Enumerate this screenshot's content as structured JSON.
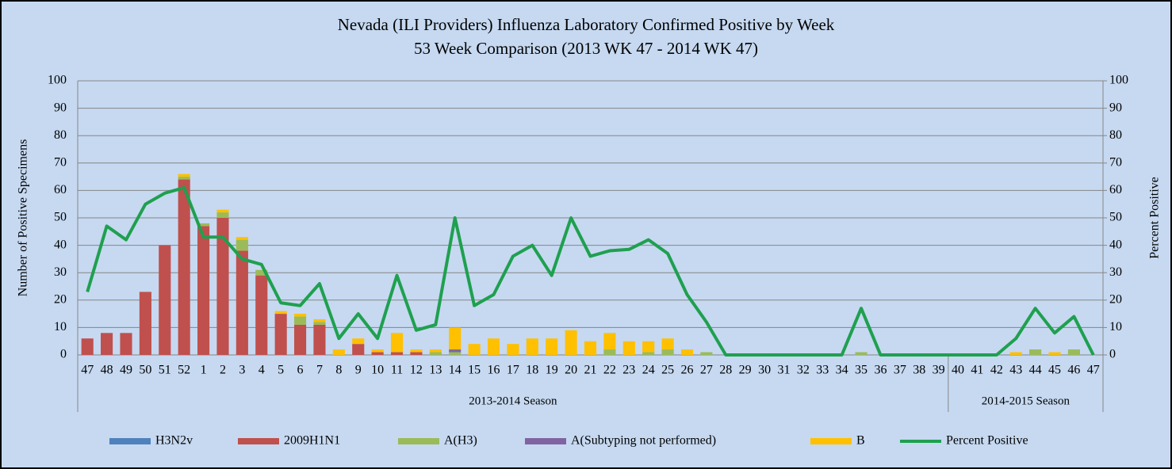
{
  "chart_data": {
    "type": "bar",
    "stacked": true,
    "title": "Nevada (ILI Providers) Influenza Laboratory Confirmed Positive by Week",
    "subtitle": "53 Week Comparison (2013 WK 47 - 2014 WK 47)",
    "y_label": "Number of Positive Specimens",
    "y2_label": "Percent Positive",
    "categories": [
      "47",
      "48",
      "49",
      "50",
      "51",
      "52",
      "1",
      "2",
      "3",
      "4",
      "5",
      "6",
      "7",
      "8",
      "9",
      "10",
      "11",
      "12",
      "13",
      "14",
      "15",
      "16",
      "17",
      "18",
      "19",
      "20",
      "21",
      "22",
      "23",
      "24",
      "25",
      "26",
      "27",
      "28",
      "29",
      "30",
      "31",
      "32",
      "33",
      "34",
      "35",
      "36",
      "37",
      "38",
      "39",
      "40",
      "41",
      "42",
      "43",
      "44",
      "45",
      "46",
      "47"
    ],
    "groups": [
      {
        "label": "2013-2014 Season",
        "size": 45
      },
      {
        "label": "2014-2015 Season",
        "size": 8
      }
    ],
    "series": [
      {
        "name": "H3N2v",
        "color": "#4f81bd",
        "values": [
          0,
          0,
          0,
          0,
          0,
          0,
          0,
          0,
          0,
          0,
          0,
          0,
          0,
          0,
          0,
          0,
          0,
          0,
          0,
          0,
          0,
          0,
          0,
          0,
          0,
          0,
          0,
          0,
          0,
          0,
          0,
          0,
          0,
          0,
          0,
          0,
          0,
          0,
          0,
          0,
          0,
          0,
          0,
          0,
          0,
          0,
          0,
          0,
          0,
          0,
          0,
          0,
          0
        ]
      },
      {
        "name": "2009H1N1",
        "color": "#c0504d",
        "values": [
          6,
          8,
          8,
          23,
          40,
          64,
          47,
          50,
          38,
          29,
          15,
          11,
          11,
          0,
          4,
          1,
          1,
          1,
          0,
          0,
          0,
          0,
          0,
          0,
          0,
          0,
          0,
          0,
          0,
          0,
          0,
          0,
          0,
          0,
          0,
          0,
          0,
          0,
          0,
          0,
          0,
          0,
          0,
          0,
          0,
          0,
          0,
          0,
          0,
          0,
          0,
          0,
          0
        ]
      },
      {
        "name": "A(H3)",
        "color": "#9bbb59",
        "values": [
          0,
          0,
          0,
          0,
          0,
          1,
          1,
          2,
          4,
          2,
          0,
          3,
          1,
          0,
          0,
          0,
          0,
          0,
          1,
          1,
          0,
          0,
          0,
          0,
          0,
          0,
          0,
          2,
          0,
          1,
          2,
          0,
          1,
          0,
          0,
          0,
          0,
          0,
          0,
          0,
          1,
          0,
          0,
          0,
          0,
          0,
          0,
          0,
          0,
          2,
          0,
          2,
          0
        ]
      },
      {
        "name": "A(Subtyping not performed)",
        "color": "#8064a2",
        "values": [
          0,
          0,
          0,
          0,
          0,
          0,
          0,
          0,
          0,
          0,
          0,
          0,
          0,
          0,
          0,
          0,
          0,
          0,
          0,
          1,
          0,
          0,
          0,
          0,
          0,
          0,
          0,
          0,
          0,
          0,
          0,
          0,
          0,
          0,
          0,
          0,
          0,
          0,
          0,
          0,
          0,
          0,
          0,
          0,
          0,
          0,
          0,
          0,
          0,
          0,
          0,
          0,
          0
        ]
      },
      {
        "name": "B",
        "color": "#ffc000",
        "values": [
          0,
          0,
          0,
          0,
          0,
          1,
          0,
          1,
          1,
          0,
          1,
          1,
          1,
          2,
          2,
          1,
          7,
          1,
          1,
          8,
          4,
          6,
          4,
          6,
          6,
          9,
          5,
          6,
          5,
          4,
          4,
          2,
          0,
          0,
          0,
          0,
          0,
          0,
          0,
          0,
          0,
          0,
          0,
          0,
          0,
          0,
          0,
          0,
          1,
          0,
          1,
          0,
          0
        ]
      },
      {
        "name": "Percent Positive",
        "type": "line",
        "axis": "y2",
        "color": "#1fa04f",
        "values": [
          23,
          47,
          42,
          55,
          59,
          61,
          43,
          43,
          35,
          33,
          19,
          18,
          26,
          6,
          15,
          6,
          29,
          9,
          11,
          50,
          18,
          22,
          36,
          40,
          29,
          50,
          36,
          38,
          38.5,
          42,
          37,
          22,
          12,
          0,
          0,
          0,
          0,
          0,
          0,
          0,
          17,
          0,
          0,
          0,
          0,
          0,
          0,
          0,
          6,
          17,
          8,
          14,
          0
        ]
      }
    ],
    "ylim": [
      0,
      100
    ],
    "yticks": [
      0,
      10,
      20,
      30,
      40,
      50,
      60,
      70,
      80,
      90,
      100
    ],
    "y2lim": [
      0,
      100
    ],
    "y2ticks": [
      0,
      10,
      20,
      30,
      40,
      50,
      60,
      70,
      80,
      90,
      100
    ],
    "grid": true
  }
}
